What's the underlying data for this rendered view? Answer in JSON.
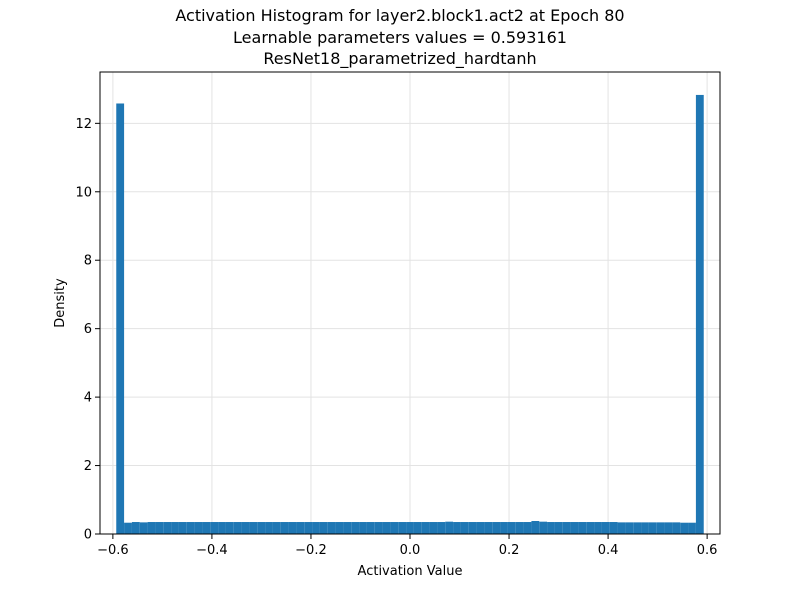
{
  "chart_data": {
    "type": "bar",
    "title_lines": [
      "Activation Histogram for layer2.block1.act2 at Epoch 80",
      "Learnable parameters values = 0.593161",
      "ResNet18_parametrized_hardtanh"
    ],
    "xlabel": "Activation Value",
    "ylabel": "Density",
    "xlim": [
      -0.626,
      0.626
    ],
    "ylim": [
      0,
      13.5
    ],
    "grid": true,
    "legend": "none",
    "bar_color": "#1f77b4",
    "x_ticks": [
      -0.6,
      -0.4,
      -0.2,
      0.0,
      0.2,
      0.4,
      0.6
    ],
    "x_tick_labels": [
      "−0.6",
      "−0.4",
      "−0.2",
      "0.0",
      "0.2",
      "0.4",
      "0.6"
    ],
    "y_ticks": [
      0,
      2,
      4,
      6,
      8,
      10,
      12
    ],
    "y_tick_labels": [
      "0",
      "2",
      "4",
      "6",
      "8",
      "10",
      "12"
    ],
    "bin_start": -0.593161,
    "bin_end": 0.593161,
    "values": [
      12.58,
      0.33,
      0.35,
      0.34,
      0.35,
      0.35,
      0.35,
      0.35,
      0.35,
      0.35,
      0.35,
      0.35,
      0.35,
      0.35,
      0.35,
      0.35,
      0.35,
      0.35,
      0.35,
      0.35,
      0.35,
      0.35,
      0.35,
      0.35,
      0.35,
      0.35,
      0.35,
      0.35,
      0.35,
      0.35,
      0.35,
      0.35,
      0.35,
      0.35,
      0.35,
      0.35,
      0.35,
      0.35,
      0.35,
      0.35,
      0.35,
      0.35,
      0.36,
      0.35,
      0.35,
      0.35,
      0.35,
      0.35,
      0.35,
      0.35,
      0.35,
      0.35,
      0.35,
      0.38,
      0.36,
      0.35,
      0.35,
      0.35,
      0.35,
      0.35,
      0.35,
      0.35,
      0.35,
      0.35,
      0.34,
      0.34,
      0.34,
      0.34,
      0.34,
      0.34,
      0.34,
      0.34,
      0.33,
      0.33,
      12.83
    ]
  }
}
